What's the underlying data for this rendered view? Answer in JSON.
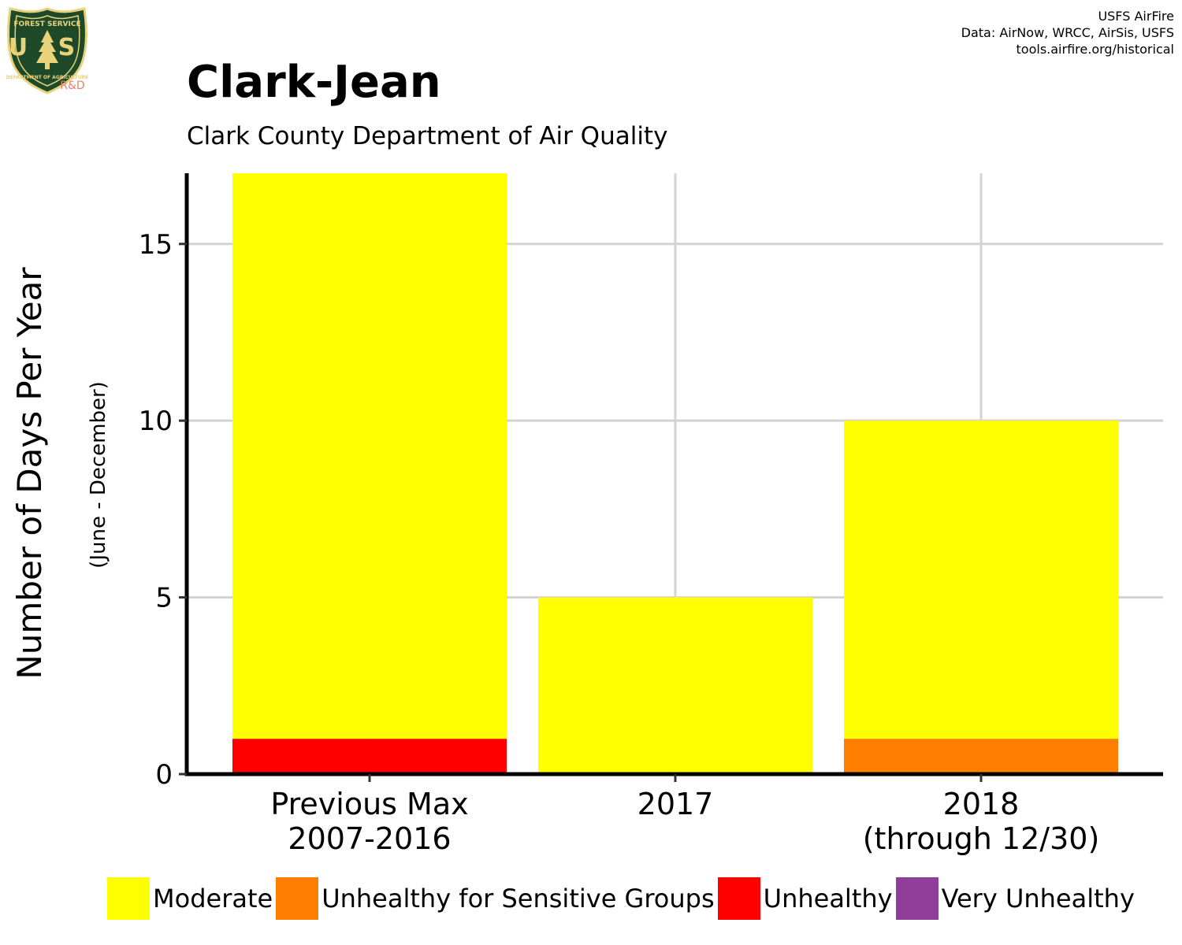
{
  "header": {
    "title": "Clark-Jean",
    "subtitle": "Clark County Department of Air Quality",
    "credits": [
      "USFS AirFire",
      "Data: AirNow, WRCC, AirSis, USFS",
      "tools.airfire.org/historical"
    ]
  },
  "logo": {
    "icon": "usfs-shield-logo",
    "top_text": "FOREST SERVICE",
    "letters": "U S",
    "bottom_text": "DEPARTMENT OF AGRICULTURE",
    "tag": "R&D",
    "colors": {
      "shield": "#1f4a2a",
      "border": "#e8d37a",
      "tag": "#e8806a"
    }
  },
  "chart_data": {
    "type": "bar",
    "stacked": true,
    "categories": [
      [
        "Previous Max",
        "2007-2016"
      ],
      [
        "2017"
      ],
      [
        "2018",
        "(through 12/30)"
      ]
    ],
    "series": [
      {
        "name": "Moderate",
        "color": "#ffff00",
        "values": [
          16,
          5,
          9
        ]
      },
      {
        "name": "Unhealthy for Sensitive Groups",
        "color": "#ff7e00",
        "values": [
          0,
          0,
          1
        ]
      },
      {
        "name": "Unhealthy",
        "color": "#ff0000",
        "values": [
          1,
          0,
          0
        ]
      },
      {
        "name": "Very Unhealthy",
        "color": "#8f3f97",
        "values": [
          0,
          0,
          0
        ]
      }
    ],
    "stack_order": [
      "Unhealthy",
      "Unhealthy for Sensitive Groups",
      "Moderate"
    ],
    "ylabel": "Number of Days Per Year",
    "ylabel_sub": "(June - December)",
    "xlabel": "",
    "ylim": [
      0,
      17
    ],
    "yticks": [
      0,
      5,
      10,
      15
    ],
    "grid": true,
    "legend_position": "bottom"
  }
}
